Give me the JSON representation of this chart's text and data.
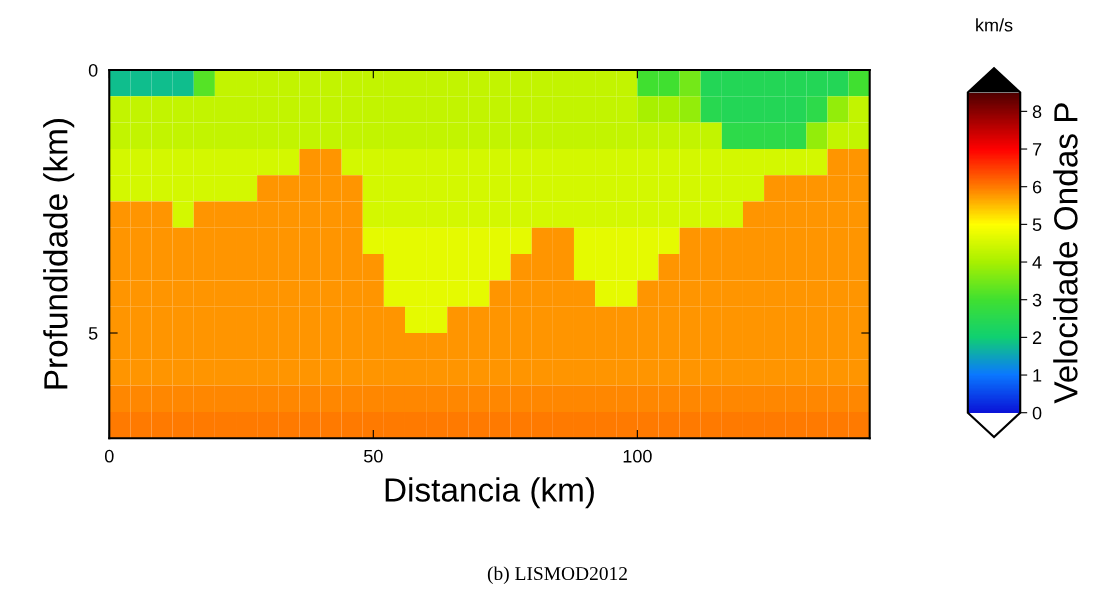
{
  "chart_data": {
    "type": "heatmap",
    "xlabel": "Distancia (km)",
    "ylabel": "Profundidade (km)",
    "clabel": "Velocidade Ondas P",
    "annotations": [
      "km/s",
      "(b) LISMOD2012"
    ],
    "xlim": [
      0,
      144
    ],
    "xticks": [
      0,
      50,
      100
    ],
    "ylim": [
      7,
      0
    ],
    "yticks": [
      0,
      5
    ],
    "clim": [
      0,
      8.5
    ],
    "cticks": [
      0,
      1,
      2,
      3,
      4,
      5,
      6,
      7,
      8
    ],
    "cells": [
      [
        1.8,
        1.8,
        1.8,
        1.8,
        3.2,
        4.3,
        4.3,
        4.3,
        4.3,
        4.3,
        4.3,
        4.3,
        4.3,
        4.3,
        4.3,
        4.3,
        4.3,
        4.3,
        4.3,
        4.3,
        4.3,
        4.3,
        4.3,
        4.3,
        4.3,
        3.0,
        3.0,
        3.5,
        2.4,
        2.4,
        2.4,
        2.4,
        2.4,
        2.4,
        2.4,
        3.0
      ],
      [
        4.3,
        4.3,
        4.3,
        4.3,
        4.3,
        4.3,
        4.3,
        4.3,
        4.3,
        4.3,
        4.3,
        4.3,
        4.3,
        4.3,
        4.3,
        4.3,
        4.3,
        4.3,
        4.3,
        4.3,
        4.3,
        4.3,
        4.3,
        4.3,
        4.3,
        4.0,
        4.0,
        3.8,
        2.5,
        2.4,
        2.4,
        2.4,
        2.4,
        2.6,
        3.8,
        4.3
      ],
      [
        4.3,
        4.3,
        4.3,
        4.3,
        4.3,
        4.3,
        4.3,
        4.3,
        4.3,
        4.3,
        4.3,
        4.3,
        4.3,
        4.3,
        4.3,
        4.3,
        4.3,
        4.3,
        4.3,
        4.3,
        4.3,
        4.3,
        4.3,
        4.3,
        4.3,
        4.3,
        4.3,
        4.3,
        4.3,
        2.6,
        2.6,
        2.6,
        2.6,
        3.8,
        4.3,
        4.3
      ],
      [
        4.5,
        4.5,
        4.5,
        4.5,
        4.5,
        4.5,
        4.5,
        4.5,
        4.5,
        5.8,
        5.8,
        4.5,
        4.5,
        4.5,
        4.5,
        4.5,
        4.5,
        4.5,
        4.5,
        4.5,
        4.5,
        4.5,
        4.5,
        4.5,
        4.5,
        4.5,
        4.5,
        4.5,
        4.5,
        4.5,
        4.5,
        4.5,
        4.5,
        4.5,
        5.8,
        5.8
      ],
      [
        4.5,
        4.5,
        4.5,
        4.5,
        4.5,
        4.5,
        4.5,
        5.8,
        5.8,
        5.8,
        5.8,
        5.8,
        4.5,
        4.5,
        4.5,
        4.5,
        4.5,
        4.5,
        4.5,
        4.5,
        4.5,
        4.5,
        4.5,
        4.5,
        4.5,
        4.5,
        4.5,
        4.5,
        4.5,
        4.5,
        4.5,
        5.8,
        5.8,
        5.8,
        5.8,
        5.8
      ],
      [
        5.8,
        5.8,
        5.8,
        4.5,
        5.8,
        5.8,
        5.8,
        5.8,
        5.8,
        5.8,
        5.8,
        5.8,
        4.5,
        4.5,
        4.5,
        4.5,
        4.5,
        4.5,
        4.5,
        4.5,
        4.5,
        4.5,
        4.5,
        4.5,
        4.5,
        4.5,
        4.5,
        4.5,
        4.5,
        4.5,
        5.8,
        5.8,
        5.8,
        5.8,
        5.8,
        5.8
      ],
      [
        5.8,
        5.8,
        5.8,
        5.8,
        5.8,
        5.8,
        5.8,
        5.8,
        5.8,
        5.8,
        5.8,
        5.8,
        4.7,
        4.7,
        4.7,
        4.7,
        4.7,
        4.7,
        4.7,
        4.7,
        5.8,
        5.8,
        4.7,
        4.7,
        4.7,
        4.7,
        4.7,
        5.8,
        5.8,
        5.8,
        5.8,
        5.8,
        5.8,
        5.8,
        5.8,
        5.8
      ],
      [
        5.8,
        5.8,
        5.8,
        5.8,
        5.8,
        5.8,
        5.8,
        5.8,
        5.8,
        5.8,
        5.8,
        5.8,
        5.8,
        4.7,
        4.7,
        4.7,
        4.7,
        4.7,
        4.7,
        5.8,
        5.8,
        5.8,
        4.7,
        4.7,
        4.7,
        4.7,
        5.8,
        5.8,
        5.8,
        5.8,
        5.8,
        5.8,
        5.8,
        5.8,
        5.8,
        5.8
      ],
      [
        5.8,
        5.8,
        5.8,
        5.8,
        5.8,
        5.8,
        5.8,
        5.8,
        5.8,
        5.8,
        5.8,
        5.8,
        5.8,
        4.7,
        4.7,
        4.7,
        4.7,
        4.7,
        5.8,
        5.8,
        5.8,
        5.8,
        5.8,
        4.7,
        4.7,
        5.8,
        5.8,
        5.8,
        5.8,
        5.8,
        5.8,
        5.8,
        5.8,
        5.8,
        5.8,
        5.8
      ],
      [
        5.8,
        5.8,
        5.8,
        5.8,
        5.8,
        5.8,
        5.8,
        5.8,
        5.8,
        5.8,
        5.8,
        5.8,
        5.8,
        5.8,
        4.7,
        4.7,
        5.8,
        5.8,
        5.8,
        5.8,
        5.8,
        5.8,
        5.8,
        5.8,
        5.8,
        5.8,
        5.8,
        5.8,
        5.8,
        5.8,
        5.8,
        5.8,
        5.8,
        5.8,
        5.8,
        5.8
      ],
      [
        5.8,
        5.8,
        5.8,
        5.8,
        5.8,
        5.8,
        5.8,
        5.8,
        5.8,
        5.8,
        5.8,
        5.8,
        5.8,
        5.8,
        5.8,
        5.8,
        5.8,
        5.8,
        5.8,
        5.8,
        5.8,
        5.8,
        5.8,
        5.8,
        5.8,
        5.8,
        5.8,
        5.8,
        5.8,
        5.8,
        5.8,
        5.8,
        5.8,
        5.8,
        5.8,
        5.8
      ],
      [
        5.8,
        5.8,
        5.8,
        5.8,
        5.8,
        5.8,
        5.8,
        5.8,
        5.8,
        5.8,
        5.8,
        5.8,
        5.8,
        5.8,
        5.8,
        5.8,
        5.8,
        5.8,
        5.8,
        5.8,
        5.8,
        5.8,
        5.8,
        5.8,
        5.8,
        5.8,
        5.8,
        5.8,
        5.8,
        5.8,
        5.8,
        5.8,
        5.8,
        5.8,
        5.8,
        5.8
      ],
      [
        5.9,
        5.9,
        5.9,
        5.9,
        5.9,
        5.9,
        5.9,
        5.9,
        5.9,
        5.9,
        5.9,
        5.9,
        5.9,
        5.9,
        5.9,
        5.9,
        5.9,
        5.9,
        5.9,
        5.9,
        5.9,
        5.9,
        5.9,
        5.9,
        5.9,
        5.9,
        5.9,
        5.9,
        5.9,
        5.9,
        5.9,
        5.9,
        5.9,
        5.9,
        5.9,
        5.9
      ],
      [
        6.0,
        6.0,
        6.0,
        6.0,
        6.0,
        6.0,
        6.0,
        6.0,
        6.0,
        6.0,
        6.0,
        6.0,
        6.0,
        6.0,
        6.0,
        6.0,
        6.0,
        6.0,
        6.0,
        6.0,
        6.0,
        6.0,
        6.0,
        6.0,
        6.0,
        6.0,
        6.0,
        6.0,
        6.0,
        6.0,
        6.0,
        6.0,
        6.0,
        6.0,
        6.0,
        6.0
      ]
    ]
  }
}
